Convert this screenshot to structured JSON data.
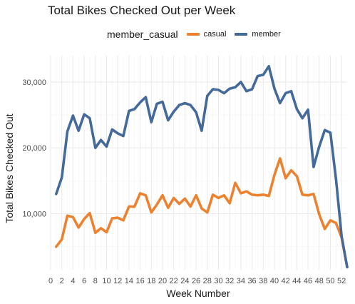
{
  "chart_data": {
    "type": "line",
    "title": "Total Bikes Checked Out per Week",
    "xlabel": "Week Number",
    "ylabel": "Total Bikes Checked Out",
    "legend_title": "member_casual",
    "legend_position": "top",
    "grid": true,
    "xlim": [
      0,
      53
    ],
    "ylim": [
      1500,
      34000
    ],
    "x_ticks": [
      0,
      2,
      4,
      6,
      8,
      10,
      12,
      14,
      16,
      18,
      20,
      22,
      24,
      26,
      28,
      30,
      32,
      34,
      36,
      38,
      40,
      42,
      44,
      46,
      48,
      50,
      52
    ],
    "y_ticks": [
      10000,
      20000,
      30000
    ],
    "y_tick_labels": [
      "10,000",
      "20,000",
      "30,000"
    ],
    "x": [
      1,
      2,
      3,
      4,
      5,
      6,
      7,
      8,
      9,
      10,
      11,
      12,
      13,
      14,
      15,
      16,
      17,
      18,
      19,
      20,
      21,
      22,
      23,
      24,
      25,
      26,
      27,
      28,
      29,
      30,
      31,
      32,
      33,
      34,
      35,
      36,
      37,
      38,
      39,
      40,
      41,
      42,
      43,
      44,
      45,
      46,
      47,
      48,
      49,
      50,
      51,
      52,
      53
    ],
    "series": [
      {
        "name": "casual",
        "color": "#ec8230",
        "values": [
          5000,
          6100,
          9700,
          9500,
          7900,
          9200,
          10100,
          7100,
          7800,
          7200,
          9300,
          9400,
          9000,
          11100,
          11100,
          13100,
          12800,
          10200,
          11400,
          12800,
          10900,
          12400,
          11500,
          12300,
          11100,
          12800,
          10800,
          10200,
          12900,
          12400,
          12800,
          11600,
          14700,
          13100,
          13400,
          12900,
          12800,
          12900,
          12700,
          15900,
          18400,
          15400,
          16600,
          15700,
          12900,
          12800,
          13000,
          9900,
          7700,
          9000,
          8600,
          6400,
          1900
        ]
      },
      {
        "name": "member",
        "color": "#446a9b",
        "values": [
          13000,
          15500,
          22500,
          24900,
          22600,
          25100,
          24500,
          20000,
          21200,
          20200,
          22800,
          22200,
          21800,
          25600,
          25900,
          26900,
          27700,
          23900,
          26700,
          27000,
          24200,
          25500,
          26500,
          26800,
          26500,
          25400,
          22600,
          27900,
          28900,
          28800,
          28300,
          29000,
          29200,
          30000,
          28600,
          28900,
          30900,
          31100,
          32400,
          29000,
          26800,
          28300,
          28600,
          25900,
          24500,
          25800,
          17100,
          20200,
          22700,
          22300,
          15300,
          6600,
          1900
        ]
      }
    ]
  }
}
